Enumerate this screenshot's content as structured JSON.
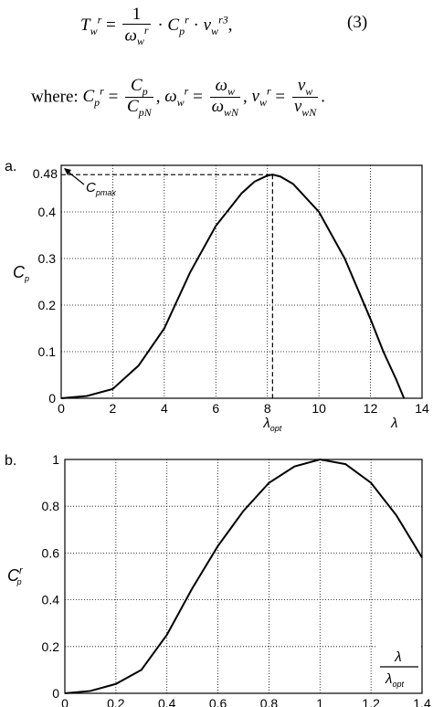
{
  "equation": {
    "lhs": "T",
    "lhs_sub": "w",
    "lhs_sup": "r",
    "equals": "=",
    "num": "1",
    "den_omega": "ω",
    "den_sub": "w",
    "den_sup": "r",
    "cp": "C",
    "cp_sub": "p",
    "cp_sup": "r",
    "v": "v",
    "v_sub": "w",
    "v_sup": "r3",
    "dot": "·",
    "comma": ",",
    "number": "(3)"
  },
  "where": {
    "label": "where:",
    "cpr": "C",
    "cpr_sub": "p",
    "cpr_sup": "r",
    "cp_num": "C",
    "cp_num_sub": "p",
    "cp_den": "C",
    "cp_den_sub": "pN",
    "omega": "ω",
    "omega_sub": "w",
    "omega_sup": "r",
    "omega_num": "ω",
    "omega_num_sub": "w",
    "omega_den": "ω",
    "omega_den_sub": "wN",
    "v": "v",
    "v_sub": "w",
    "v_sup": "r",
    "v_num": "v",
    "v_num_sub": "w",
    "v_den": "v",
    "v_den_sub": "wN",
    "sep": ",",
    "end": "."
  },
  "chart_data": [
    {
      "panel": "a.",
      "type": "line",
      "xlim": [
        0,
        14
      ],
      "ylim": [
        0,
        0.5
      ],
      "xticks": [
        0,
        2,
        4,
        6,
        8,
        10,
        12,
        14
      ],
      "yticks": [
        0,
        0.1,
        0.2,
        0.3,
        0.4
      ],
      "ytick_extra": "0.48",
      "grid": true,
      "ylabel": "C_p",
      "xlabel": "λ",
      "x_mark_label": "λ_opt",
      "annotation": "C_pmax",
      "x": [
        0,
        1,
        2,
        3,
        4,
        5,
        6,
        7,
        7.5,
        8,
        8.2,
        8.5,
        9,
        10,
        11,
        12,
        12.5,
        13,
        13.3
      ],
      "y": [
        0,
        0.005,
        0.02,
        0.07,
        0.15,
        0.27,
        0.37,
        0.44,
        0.465,
        0.478,
        0.48,
        0.476,
        0.46,
        0.4,
        0.3,
        0.17,
        0.1,
        0.04,
        0
      ]
    },
    {
      "panel": "b.",
      "type": "line",
      "xlim": [
        0,
        1.4
      ],
      "ylim": [
        0,
        1
      ],
      "xticks": [
        0,
        0.2,
        0.4,
        0.6,
        0.8,
        1,
        1.2,
        1.4
      ],
      "yticks": [
        0,
        0.2,
        0.4,
        0.6,
        0.8,
        1
      ],
      "grid": true,
      "ylabel": "C_p^r",
      "xlabel_num": "λ",
      "xlabel_den": "λ_opt",
      "x": [
        0,
        0.1,
        0.2,
        0.3,
        0.4,
        0.5,
        0.6,
        0.7,
        0.8,
        0.9,
        1.0,
        1.1,
        1.2,
        1.3,
        1.4
      ],
      "y": [
        0,
        0.01,
        0.04,
        0.1,
        0.25,
        0.45,
        0.63,
        0.78,
        0.9,
        0.97,
        1.0,
        0.98,
        0.9,
        0.76,
        0.58
      ]
    }
  ]
}
